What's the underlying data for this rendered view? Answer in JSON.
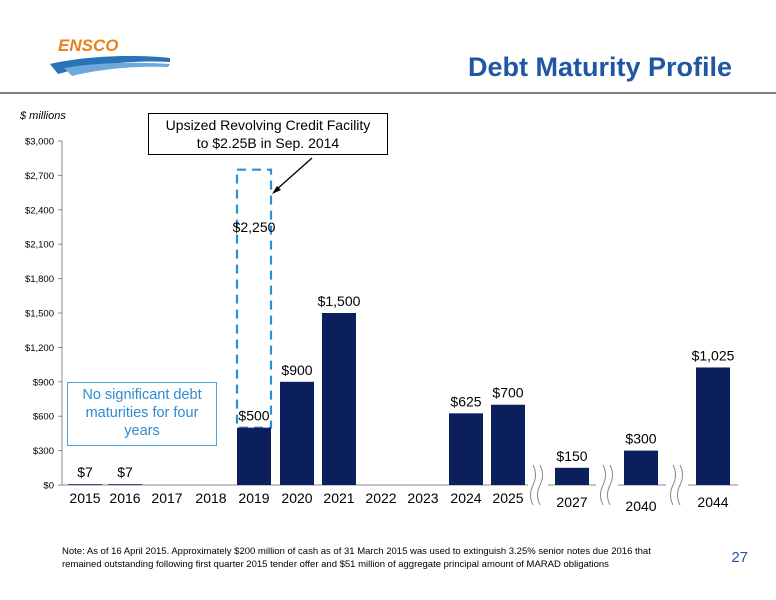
{
  "header": {
    "logo_text": "ENSCO",
    "title": "Debt Maturity Profile",
    "brand_color": "#1f57a4",
    "accent_orange": "#e8801e"
  },
  "units_label": "$ millions",
  "callout": {
    "line1": "Upsized Revolving Credit Facility",
    "line2": "to $2.25B in Sep. 2014"
  },
  "note_box": {
    "line1": "No significant debt",
    "line2": "maturities for four",
    "line3": "years"
  },
  "footnote": {
    "line1": "Note: As of 16 April 2015.  Approximately $200 million of cash as of 31 March  2015 was used to extinguish 3.25% senior notes due 2016 that",
    "line2": "remained outstanding following first quarter 2015 tender offer and $51 million of aggregate principal amount of MARAD obligations"
  },
  "page_number": "27",
  "chart_data": {
    "type": "bar",
    "categories": [
      "2015",
      "2016",
      "2017",
      "2018",
      "2019",
      "2020",
      "2021",
      "2022",
      "2023",
      "2024",
      "2025",
      "2027",
      "2040",
      "2044"
    ],
    "values": [
      7,
      7,
      0,
      0,
      500,
      900,
      1500,
      0,
      0,
      625,
      700,
      150,
      300,
      1025
    ],
    "value_labels": [
      "$7",
      "$7",
      "",
      "",
      "$500",
      "$900",
      "$1,500",
      "",
      "",
      "$625",
      "$700",
      "$150",
      "$300",
      "$1,025"
    ],
    "revolver": {
      "category": "2019",
      "value": 2250,
      "label": "$2,250",
      "style": "dashed-outline"
    },
    "y_ticks": [
      0,
      300,
      600,
      900,
      1200,
      1500,
      1800,
      2100,
      2400,
      2700,
      3000
    ],
    "y_tick_labels": [
      "$0",
      "$300",
      "$600",
      "$900",
      "$1,200",
      "$1,500",
      "$1,800",
      "$2,100",
      "$2,400",
      "$2,700",
      "$3,000"
    ],
    "ylim": [
      0,
      3000
    ],
    "axis_breaks_before": [
      "2027",
      "2040",
      "2044"
    ],
    "bar_color": "#0b1f5c",
    "dashed_color": "#2b8fd6",
    "grid": false
  }
}
